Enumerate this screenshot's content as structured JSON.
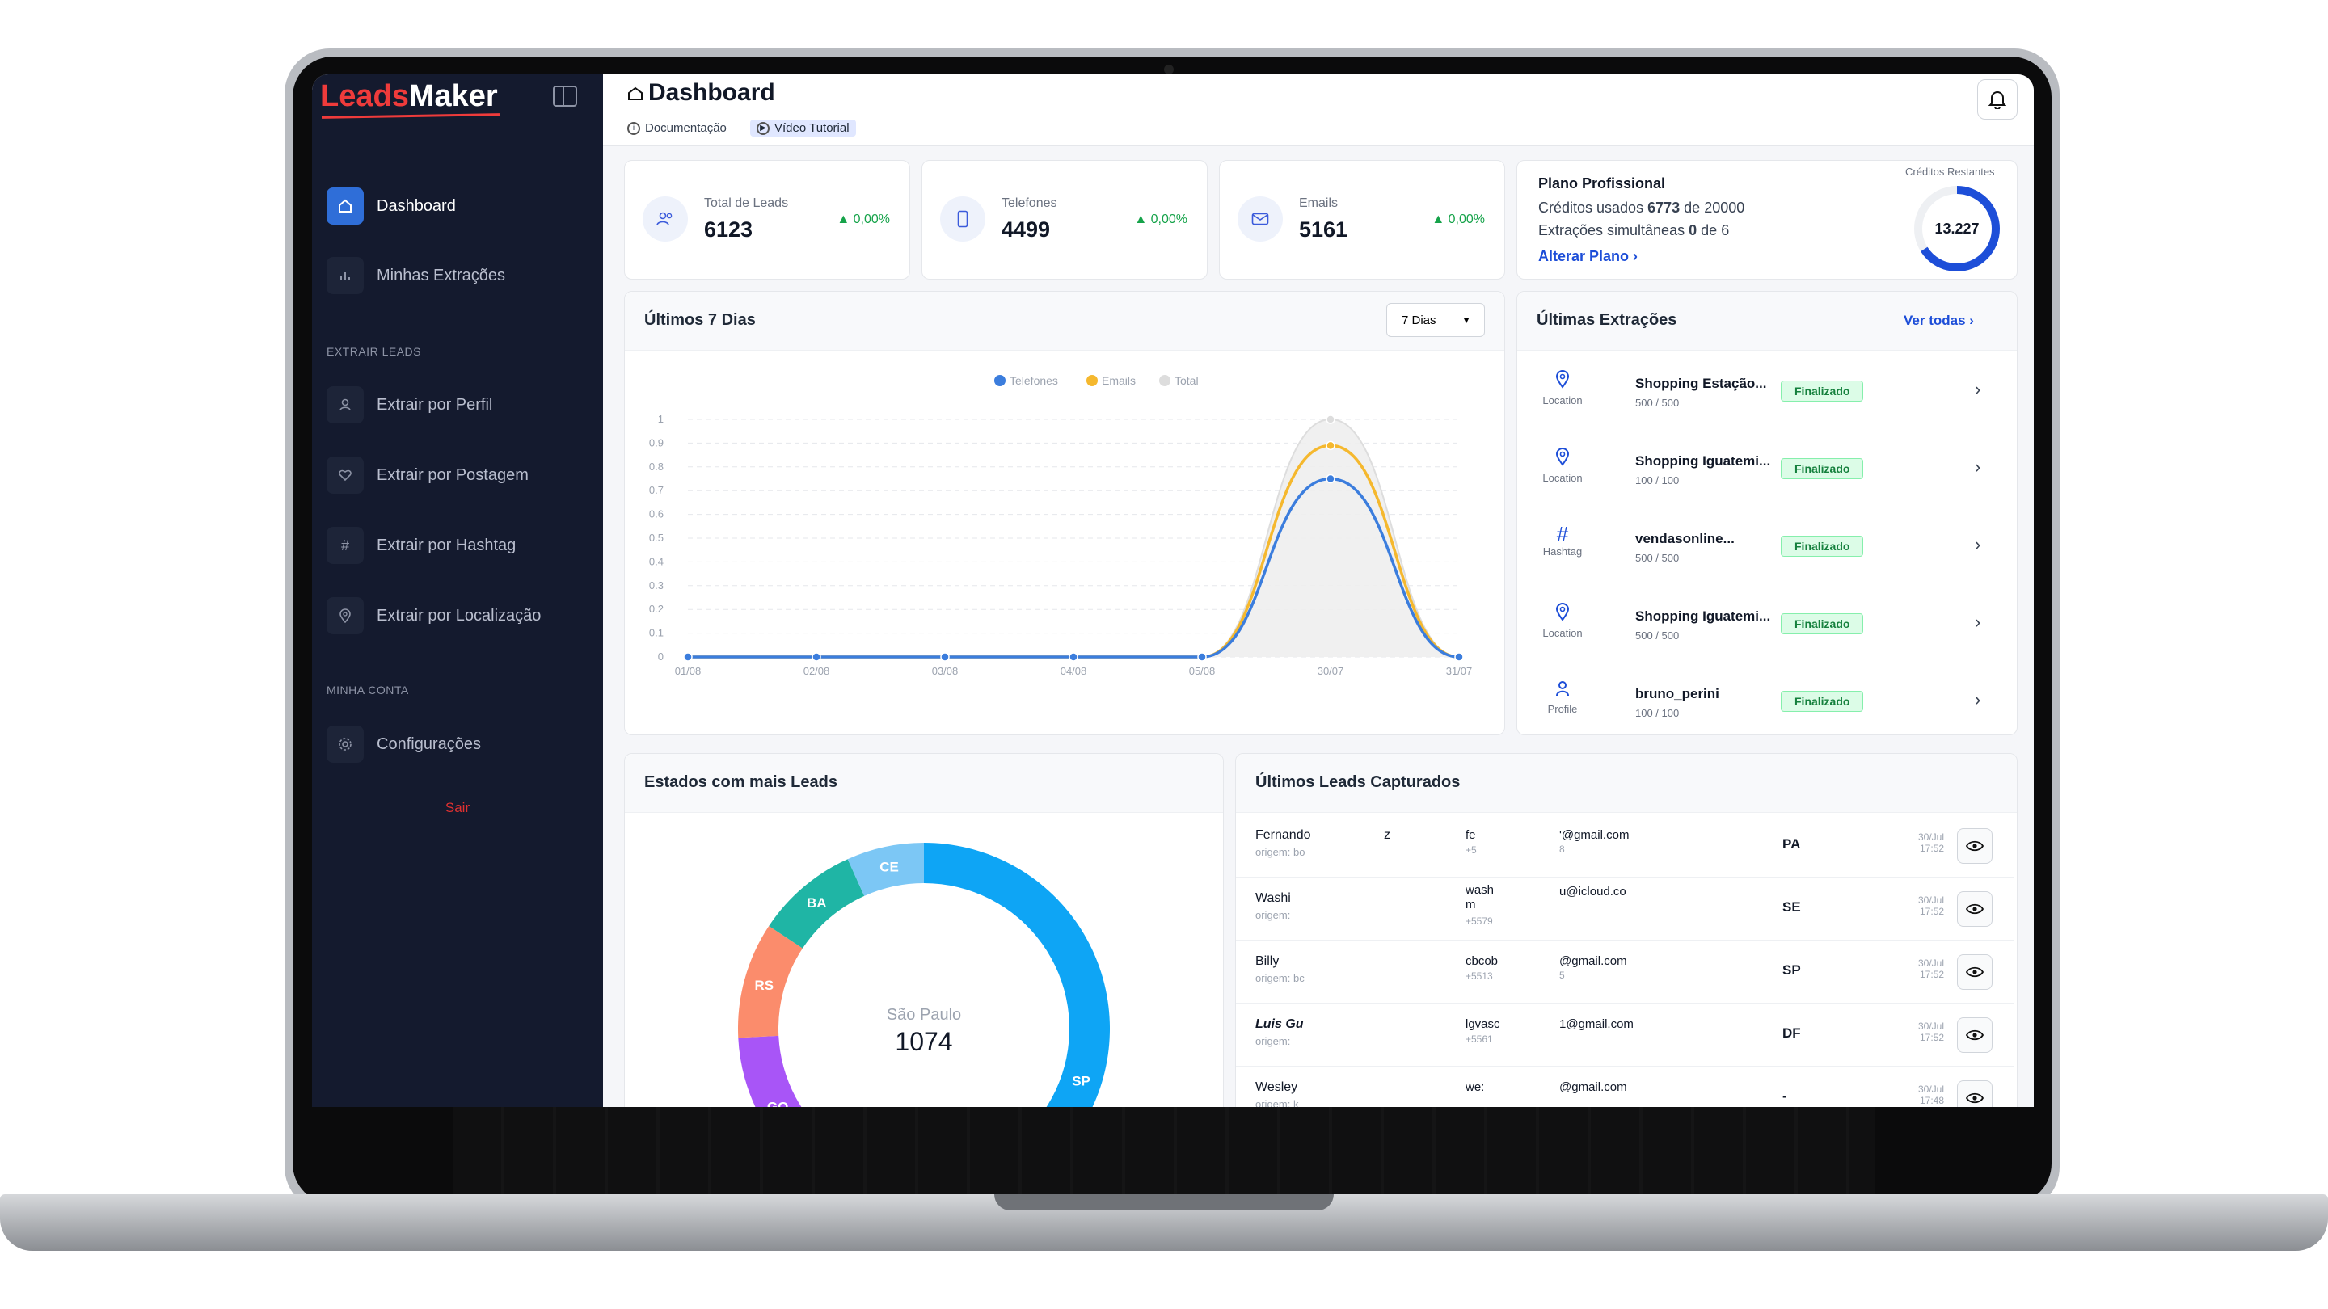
{
  "sidebar": {
    "logo_part1": "Leads",
    "logo_part2": "Maker",
    "items": [
      {
        "label": "Dashboard"
      },
      {
        "label": "Minhas Extrações"
      },
      {
        "label": "Extrair por Perfil"
      },
      {
        "label": "Extrair por Postagem"
      },
      {
        "label": "Extrair por Hashtag"
      },
      {
        "label": "Extrair por Localização"
      },
      {
        "label": "Configurações"
      }
    ],
    "section_extract": "EXTRAIR LEADS",
    "section_account": "MINHA CONTA",
    "logout": "Sair"
  },
  "header": {
    "title": "Dashboard",
    "docs_label": "Documentação",
    "tutorial_label": "Vídeo Tutorial"
  },
  "stats": [
    {
      "label": "Total de Leads",
      "value": "6123",
      "delta": "0,00%",
      "icon": "users-icon"
    },
    {
      "label": "Telefones",
      "value": "4499",
      "delta": "0,00%",
      "icon": "phone-icon"
    },
    {
      "label": "Emails",
      "value": "5161",
      "delta": "0,00%",
      "icon": "mail-icon"
    }
  ],
  "plan": {
    "name": "Plano Profissional",
    "credits_prefix": "Créditos usados",
    "credits_used": "6773",
    "credits_mid": "de",
    "credits_total": "20000",
    "extractions_prefix": "Extrações simultâneas",
    "extractions_used": "0",
    "extractions_mid": "de",
    "extractions_total": "6",
    "change_link": "Alterar Plano",
    "remaining_label": "Créditos Restantes",
    "remaining_value": "13.227",
    "remaining_fraction": 0.66
  },
  "chart": {
    "title": "Últimos 7 Dias",
    "period": "7 Dias"
  },
  "chart_data": {
    "type": "line",
    "x": [
      "01/08",
      "02/08",
      "03/08",
      "04/08",
      "05/08",
      "30/07",
      "31/07"
    ],
    "series": [
      {
        "name": "Telefones",
        "values": [
          0,
          0,
          0,
          0,
          0,
          0.75,
          0
        ],
        "color": "#3b7ddd"
      },
      {
        "name": "Emails",
        "values": [
          0,
          0,
          0,
          0,
          0,
          0.89,
          0
        ],
        "color": "#f5b82e"
      },
      {
        "name": "Total",
        "values": [
          0,
          0,
          0,
          0,
          0,
          1,
          0
        ],
        "color": "#dddddd"
      }
    ],
    "y_ticks": [
      "0",
      "0.1",
      "0.2",
      "0.3",
      "0.4",
      "0.5",
      "0.6",
      "0.7",
      "0.8",
      "0.9",
      "1"
    ],
    "ylim": [
      0,
      1
    ],
    "legend": "top-center",
    "grid": true
  },
  "extractions": {
    "title": "Últimas Extrações",
    "see_all": "Ver todas",
    "status_label": "Finalizado",
    "items": [
      {
        "name": "Shopping Estação...",
        "count": "500 / 500",
        "type": "Location",
        "icon": "location-icon"
      },
      {
        "name": "Shopping Iguatemi...",
        "count": "100 / 100",
        "type": "Location",
        "icon": "location-icon"
      },
      {
        "name": "vendasonline...",
        "count": "500 / 500",
        "type": "Hashtag",
        "icon": "hashtag-icon"
      },
      {
        "name": "Shopping Iguatemi...",
        "count": "500 / 500",
        "type": "Location",
        "icon": "location-icon"
      },
      {
        "name": "bruno_perini",
        "count": "100 / 100",
        "type": "Profile",
        "icon": "profile-icon"
      }
    ]
  },
  "states": {
    "title": "Estados com mais Leads",
    "center_label": "São Paulo",
    "center_value": "1074"
  },
  "states_chart": {
    "type": "pie",
    "labels": [
      "SP",
      "GO",
      "RS",
      "BA",
      "CE"
    ],
    "values": [
      1074,
      250,
      180,
      160,
      120
    ],
    "colors": [
      "#0ea5f5",
      "#a855f7",
      "#fb8c6c",
      "#1fb5a5",
      "#7cc7f5"
    ]
  },
  "leads": {
    "title": "Últimos Leads Capturados",
    "rows": [
      {
        "name": "Fernando",
        "name2": "z",
        "origin": "origem: bo",
        "user": "fe",
        "phone": "+5",
        "email": "'@gmail.com",
        "email2": "8",
        "state": "PA",
        "date": "30/Jul",
        "time": "17:52"
      },
      {
        "name": "Washi",
        "name2": "",
        "origin": "origem:",
        "user": "wash",
        "user2": "m",
        "phone": "+5579",
        "email": "u@icloud.co",
        "email2": "",
        "state": "SE",
        "date": "30/Jul",
        "time": "17:52"
      },
      {
        "name": "Billy",
        "name2": "",
        "origin": "origem: bc",
        "user": "cbcob",
        "phone": "+5513",
        "email": "@gmail.com",
        "email2": "5",
        "state": "SP",
        "date": "30/Jul",
        "time": "17:52"
      },
      {
        "name": "Luis Gu",
        "name2": "",
        "origin": "origem:",
        "user": "lgvasc",
        "phone": "+5561",
        "email": "1@gmail.com",
        "email2": "",
        "state": "DF",
        "date": "30/Jul",
        "time": "17:52"
      },
      {
        "name": "Wesley",
        "name2": "",
        "origin": "origem: k",
        "user": "we:",
        "phone": "",
        "email": "@gmail.com",
        "email2": "",
        "state": "-",
        "date": "30/Jul",
        "time": "17:48"
      }
    ]
  }
}
